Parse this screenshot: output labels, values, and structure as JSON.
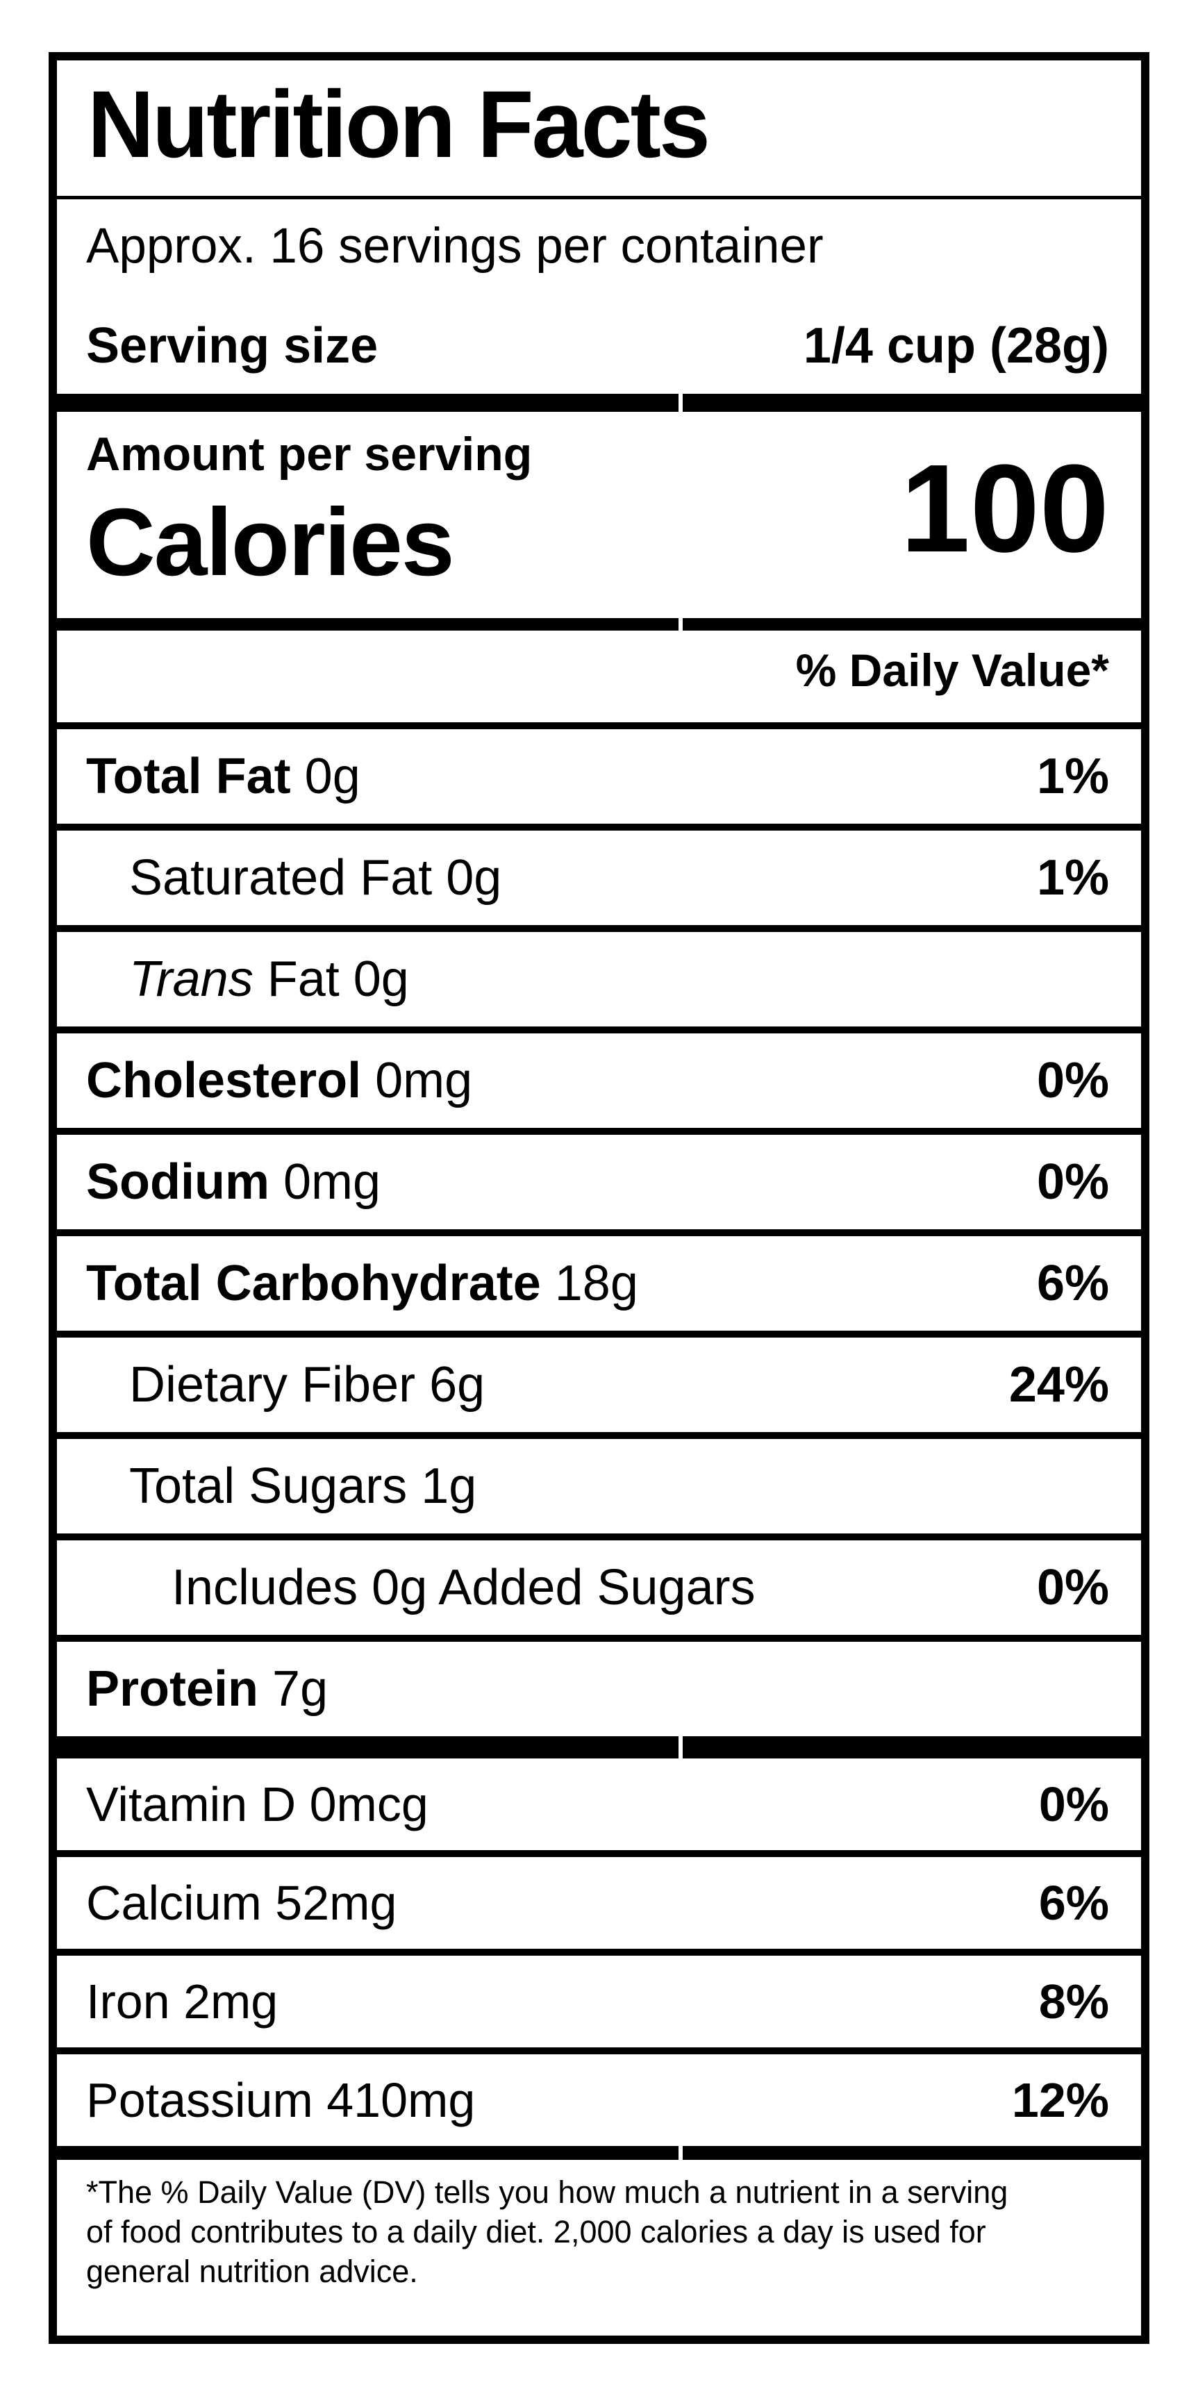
{
  "label": {
    "title": "Nutrition Facts",
    "servings_per_container": "Approx. 16 servings per container",
    "serving_size": {
      "label": "Serving size",
      "value": "1/4 cup (28g)"
    },
    "calories": {
      "eyebrow": "Amount per serving",
      "label": "Calories",
      "value": "100"
    },
    "daily_value_header": "% Daily Value*",
    "nutrients": [
      {
        "id": "total-fat",
        "bold": "Total Fat",
        "rest": " 0g",
        "dv": "1%"
      },
      {
        "id": "saturated-fat",
        "rest": "Saturated Fat 0g",
        "dv": "1%"
      },
      {
        "id": "trans-fat",
        "italic": "Trans",
        "rest": " Fat 0g",
        "dv": ""
      },
      {
        "id": "cholesterol",
        "bold": "Cholesterol",
        "rest": " 0mg",
        "dv": "0%"
      },
      {
        "id": "sodium",
        "bold": "Sodium",
        "rest": " 0mg",
        "dv": "0%"
      },
      {
        "id": "total-carbohydrate",
        "bold": "Total Carbohydrate",
        "rest": " 18g",
        "dv": "6%"
      },
      {
        "id": "dietary-fiber",
        "rest": "Dietary Fiber 6g",
        "dv": "24%"
      },
      {
        "id": "total-sugars",
        "rest": "Total Sugars 1g",
        "dv": ""
      },
      {
        "id": "added-sugars",
        "rest": "Includes 0g Added Sugars",
        "dv": "0%"
      },
      {
        "id": "protein",
        "bold": "Protein",
        "rest": " 7g",
        "dv": ""
      }
    ],
    "micronutrients": [
      {
        "id": "vitamin-d",
        "text": "Vitamin D 0mcg",
        "dv": "0%"
      },
      {
        "id": "calcium",
        "text": "Calcium 52mg",
        "dv": "6%"
      },
      {
        "id": "iron",
        "text": "Iron 2mg",
        "dv": "8%"
      },
      {
        "id": "potassium",
        "text": "Potassium 410mg",
        "dv": "12%"
      }
    ],
    "footnote": "*The % Daily Value (DV) tells you how much a nutrient in a serving\nof food contributes to a daily diet. 2,000 calories a day is used for\ngeneral nutrition advice."
  }
}
